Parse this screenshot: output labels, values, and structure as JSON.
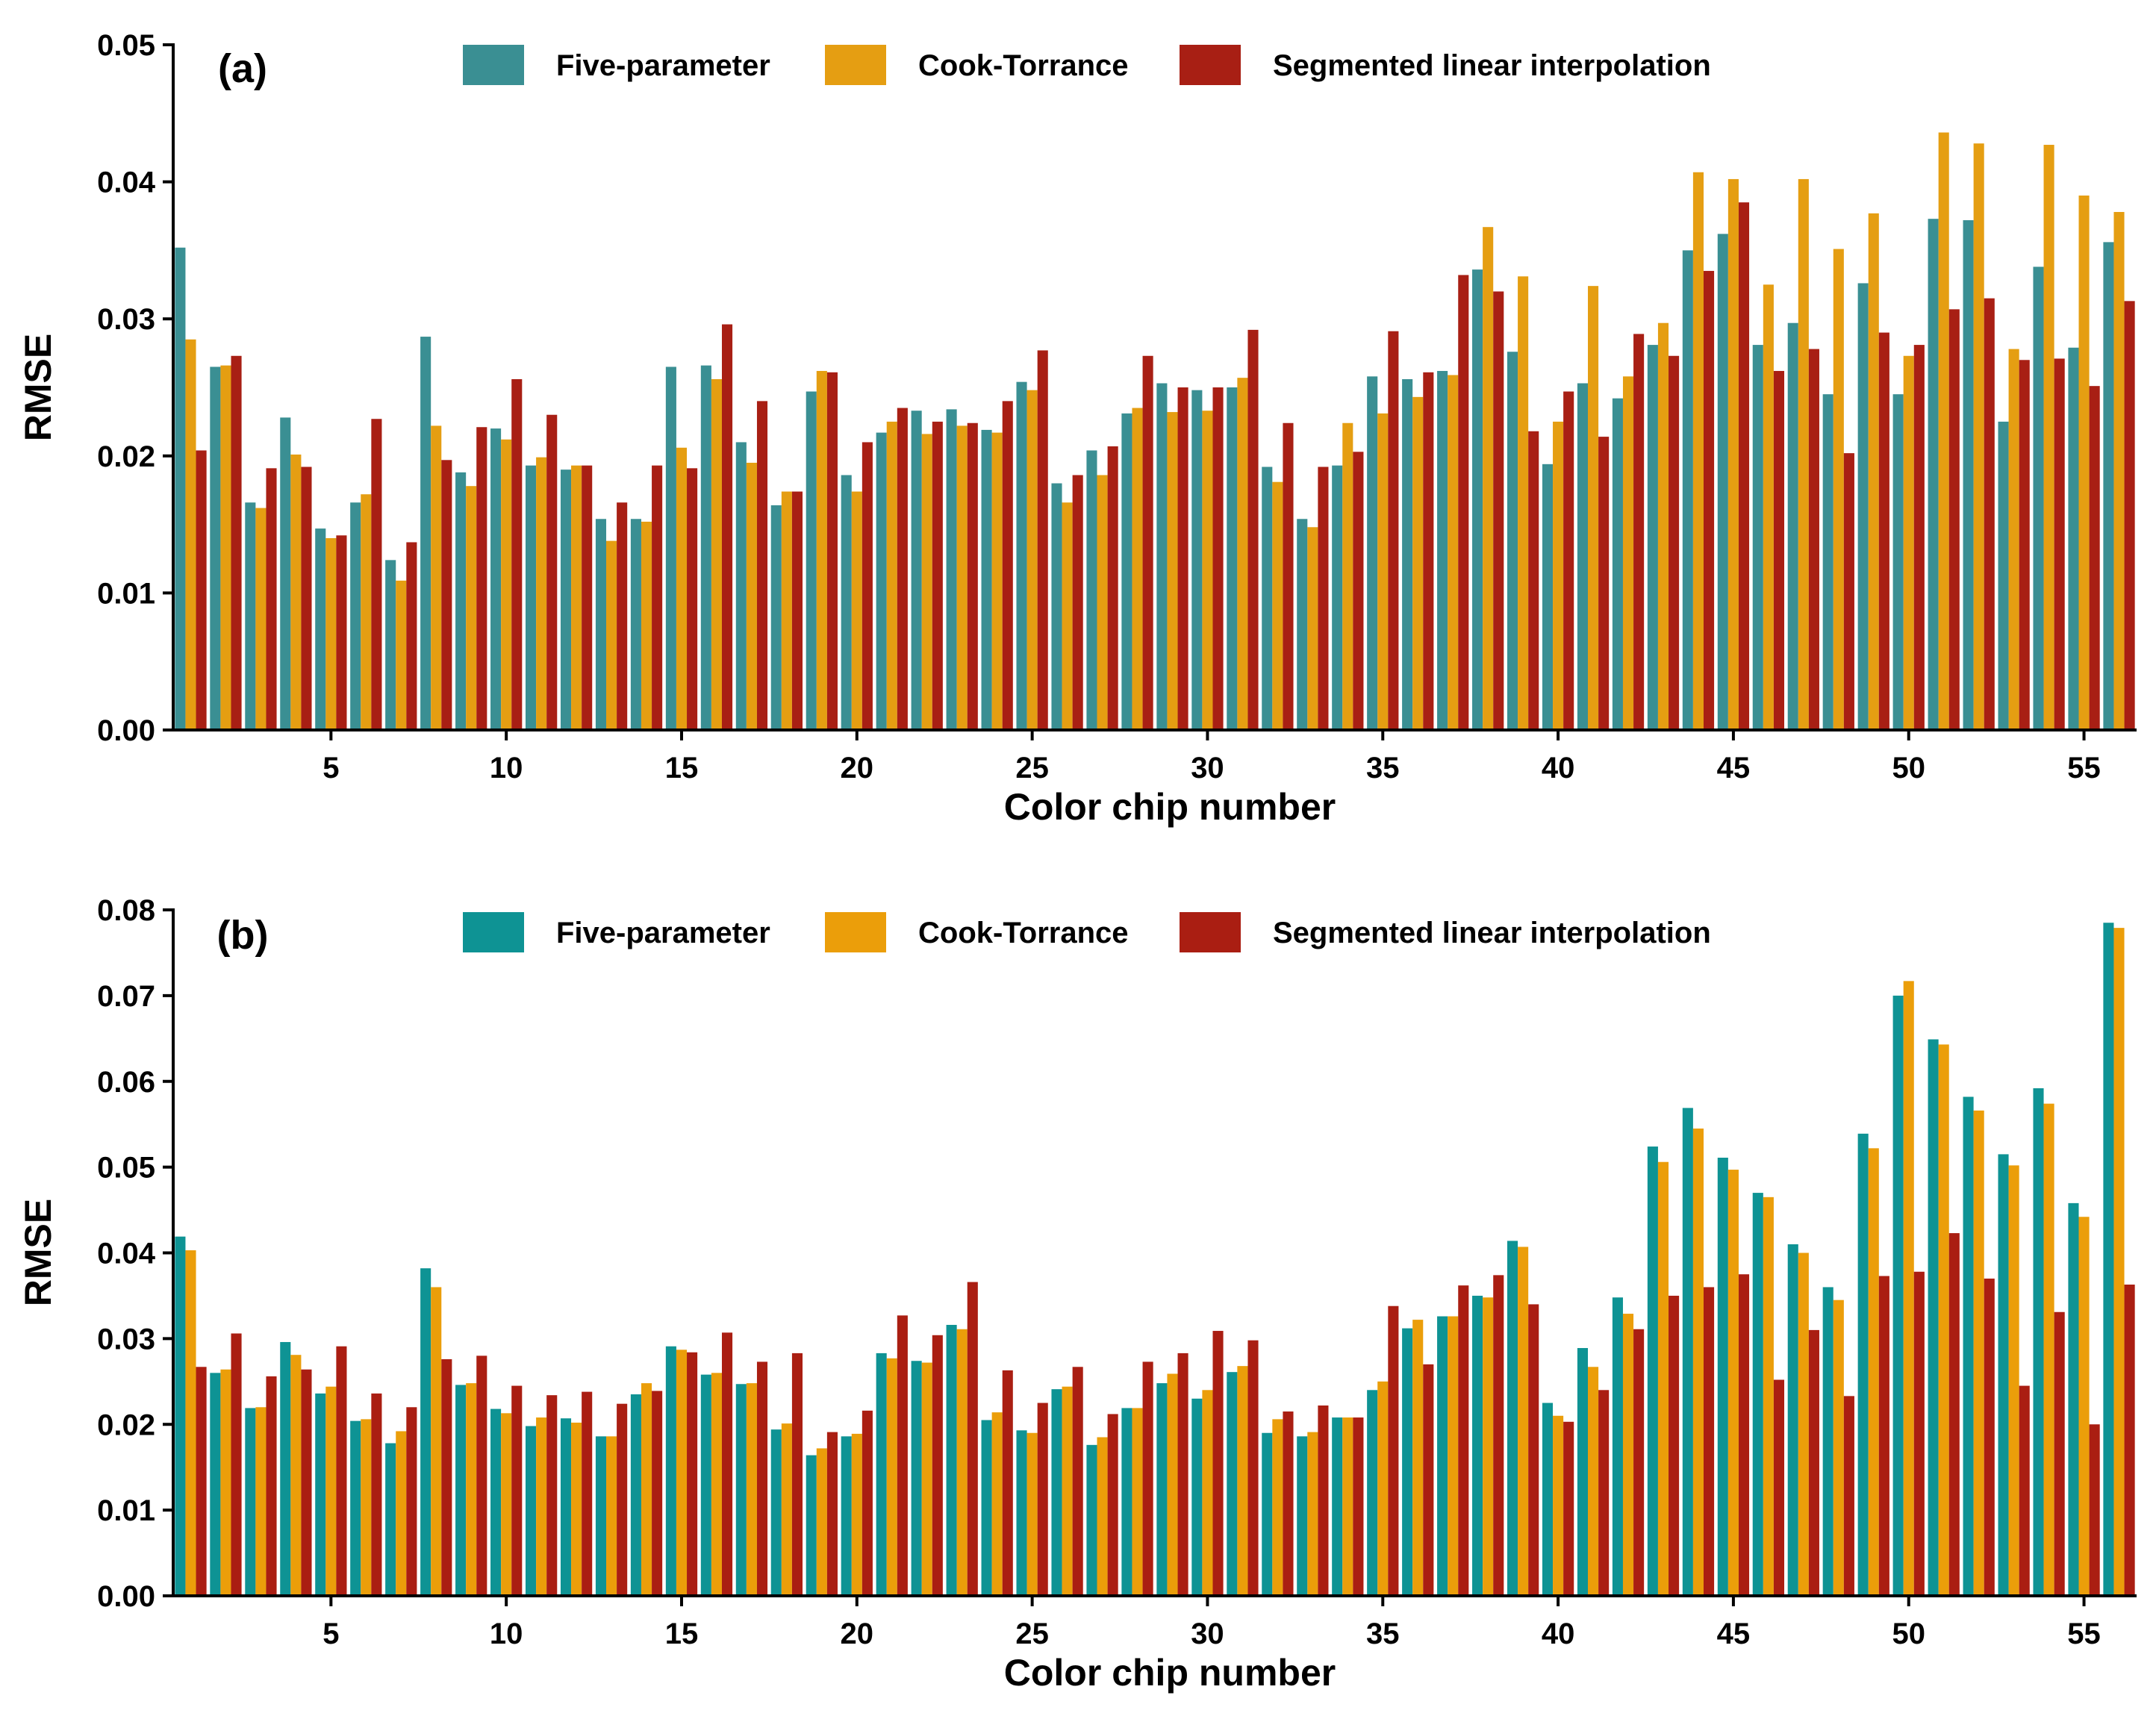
{
  "chart_data": [
    {
      "type": "bar",
      "panel_label": "(a)",
      "xlabel": "Color chip number",
      "ylabel": "RMSE",
      "ylim": [
        0,
        0.05
      ],
      "yticks": [
        "0.00",
        "0.01",
        "0.02",
        "0.03",
        "0.04",
        "0.05"
      ],
      "yticks_values": [
        0,
        0.01,
        0.02,
        0.03,
        0.04,
        0.05
      ],
      "xticks": [
        "5",
        "10",
        "15",
        "20",
        "25",
        "30",
        "35",
        "40",
        "45",
        "50",
        "55"
      ],
      "xticks_values": [
        5,
        10,
        15,
        20,
        25,
        30,
        35,
        40,
        45,
        50,
        55
      ],
      "categories": [
        1,
        2,
        3,
        4,
        5,
        6,
        7,
        8,
        9,
        10,
        11,
        12,
        13,
        14,
        15,
        16,
        17,
        18,
        19,
        20,
        21,
        22,
        23,
        24,
        25,
        26,
        27,
        28,
        29,
        30,
        31,
        32,
        33,
        34,
        35,
        36,
        37,
        38,
        39,
        40,
        41,
        42,
        43,
        44,
        45,
        46,
        47,
        48,
        49,
        50,
        51,
        52,
        53,
        54,
        55,
        56
      ],
      "legend_position": "top",
      "series": [
        {
          "name": "Five-parameter",
          "color": "#3a8f93",
          "values": [
            0.0352,
            0.0265,
            0.0166,
            0.0228,
            0.0147,
            0.0166,
            0.0124,
            0.0287,
            0.0188,
            0.022,
            0.0193,
            0.019,
            0.0154,
            0.0154,
            0.0265,
            0.0266,
            0.021,
            0.0164,
            0.0247,
            0.0186,
            0.0217,
            0.0233,
            0.0234,
            0.0219,
            0.0254,
            0.018,
            0.0204,
            0.0231,
            0.0253,
            0.0248,
            0.025,
            0.0192,
            0.0154,
            0.0193,
            0.0258,
            0.0256,
            0.0262,
            0.0336,
            0.0276,
            0.0194,
            0.0253,
            0.0242,
            0.0281,
            0.035,
            0.0362,
            0.0281,
            0.0297,
            0.0245,
            0.0326,
            0.0245,
            0.0373,
            0.0372,
            0.0225,
            0.0338,
            0.0279,
            0.0356
          ]
        },
        {
          "name": "Cook-Torrance",
          "color": "#e59e12",
          "values": [
            0.0285,
            0.0266,
            0.0162,
            0.0201,
            0.014,
            0.0172,
            0.0109,
            0.0222,
            0.0178,
            0.0212,
            0.0199,
            0.0193,
            0.0138,
            0.0152,
            0.0206,
            0.0256,
            0.0195,
            0.0174,
            0.0262,
            0.0174,
            0.0225,
            0.0216,
            0.0222,
            0.0217,
            0.0248,
            0.0166,
            0.0186,
            0.0235,
            0.0232,
            0.0233,
            0.0257,
            0.0181,
            0.0148,
            0.0224,
            0.0231,
            0.0243,
            0.0259,
            0.0367,
            0.0331,
            0.0225,
            0.0324,
            0.0258,
            0.0297,
            0.0407,
            0.0402,
            0.0325,
            0.0402,
            0.0351,
            0.0377,
            0.0273,
            0.0436,
            0.0428,
            0.0278,
            0.0427,
            0.039,
            0.0378
          ]
        },
        {
          "name": "Segmented linear interpolation",
          "color": "#a81f14",
          "values": [
            0.0204,
            0.0273,
            0.0191,
            0.0192,
            0.0142,
            0.0227,
            0.0137,
            0.0197,
            0.0221,
            0.0256,
            0.023,
            0.0193,
            0.0166,
            0.0193,
            0.0191,
            0.0296,
            0.024,
            0.0174,
            0.0261,
            0.021,
            0.0235,
            0.0225,
            0.0224,
            0.024,
            0.0277,
            0.0186,
            0.0207,
            0.0273,
            0.025,
            0.025,
            0.0292,
            0.0224,
            0.0192,
            0.0203,
            0.0291,
            0.0261,
            0.0332,
            0.032,
            0.0218,
            0.0247,
            0.0214,
            0.0289,
            0.0273,
            0.0335,
            0.0385,
            0.0262,
            0.0278,
            0.0202,
            0.029,
            0.0281,
            0.0307,
            0.0315,
            0.027,
            0.0271,
            0.0251,
            0.0313
          ]
        }
      ]
    },
    {
      "type": "bar",
      "panel_label": "(b)",
      "xlabel": "Color chip number",
      "ylabel": "RMSE",
      "ylim": [
        0,
        0.08
      ],
      "yticks": [
        "0.00",
        "0.01",
        "0.02",
        "0.03",
        "0.04",
        "0.05",
        "0.06",
        "0.07",
        "0.08"
      ],
      "yticks_values": [
        0,
        0.01,
        0.02,
        0.03,
        0.04,
        0.05,
        0.06,
        0.07,
        0.08
      ],
      "xticks": [
        "5",
        "10",
        "15",
        "20",
        "25",
        "30",
        "35",
        "40",
        "45",
        "50",
        "55"
      ],
      "xticks_values": [
        5,
        10,
        15,
        20,
        25,
        30,
        35,
        40,
        45,
        50,
        55
      ],
      "categories": [
        1,
        2,
        3,
        4,
        5,
        6,
        7,
        8,
        9,
        10,
        11,
        12,
        13,
        14,
        15,
        16,
        17,
        18,
        19,
        20,
        21,
        22,
        23,
        24,
        25,
        26,
        27,
        28,
        29,
        30,
        31,
        32,
        33,
        34,
        35,
        36,
        37,
        38,
        39,
        40,
        41,
        42,
        43,
        44,
        45,
        46,
        47,
        48,
        49,
        50,
        51,
        52,
        53,
        54,
        55,
        56
      ],
      "legend_position": "top",
      "series": [
        {
          "name": "Five-parameter",
          "color": "#0e9394",
          "values": [
            0.0419,
            0.026,
            0.0219,
            0.0296,
            0.0236,
            0.0204,
            0.0178,
            0.0382,
            0.0246,
            0.0218,
            0.0198,
            0.0207,
            0.0186,
            0.0235,
            0.0291,
            0.0258,
            0.0247,
            0.0194,
            0.0164,
            0.0186,
            0.0283,
            0.0274,
            0.0316,
            0.0205,
            0.0193,
            0.0241,
            0.0176,
            0.0219,
            0.0248,
            0.023,
            0.0261,
            0.019,
            0.0186,
            0.0208,
            0.024,
            0.0312,
            0.0326,
            0.035,
            0.0414,
            0.0225,
            0.0289,
            0.0348,
            0.0524,
            0.0569,
            0.0511,
            0.047,
            0.041,
            0.036,
            0.0539,
            0.07,
            0.0649,
            0.0582,
            0.0515,
            0.0592,
            0.0458,
            0.0785
          ]
        },
        {
          "name": "Cook-Torrance",
          "color": "#eb9e0a",
          "values": [
            0.0403,
            0.0264,
            0.022,
            0.0281,
            0.0244,
            0.0206,
            0.0192,
            0.036,
            0.0248,
            0.0213,
            0.0208,
            0.0202,
            0.0186,
            0.0248,
            0.0287,
            0.026,
            0.0248,
            0.0201,
            0.0172,
            0.0189,
            0.0277,
            0.0272,
            0.0311,
            0.0214,
            0.019,
            0.0244,
            0.0185,
            0.0219,
            0.0259,
            0.024,
            0.0268,
            0.0206,
            0.0191,
            0.0208,
            0.025,
            0.0322,
            0.0326,
            0.0348,
            0.0407,
            0.021,
            0.0267,
            0.0329,
            0.0506,
            0.0545,
            0.0497,
            0.0465,
            0.04,
            0.0345,
            0.0522,
            0.0717,
            0.0643,
            0.0566,
            0.0502,
            0.0574,
            0.0442,
            0.0779
          ]
        },
        {
          "name": "Segmented linear interpolation",
          "color": "#aa1e12",
          "values": [
            0.0267,
            0.0306,
            0.0256,
            0.0264,
            0.0291,
            0.0236,
            0.022,
            0.0276,
            0.028,
            0.0245,
            0.0234,
            0.0238,
            0.0224,
            0.0239,
            0.0284,
            0.0307,
            0.0273,
            0.0283,
            0.0191,
            0.0216,
            0.0327,
            0.0304,
            0.0366,
            0.0263,
            0.0225,
            0.0267,
            0.0212,
            0.0273,
            0.0283,
            0.0309,
            0.0298,
            0.0215,
            0.0222,
            0.0208,
            0.0338,
            0.027,
            0.0362,
            0.0374,
            0.034,
            0.0203,
            0.024,
            0.0311,
            0.035,
            0.036,
            0.0375,
            0.0252,
            0.031,
            0.0233,
            0.0373,
            0.0378,
            0.0423,
            0.037,
            0.0245,
            0.0331,
            0.02,
            0.0363
          ]
        }
      ]
    }
  ]
}
